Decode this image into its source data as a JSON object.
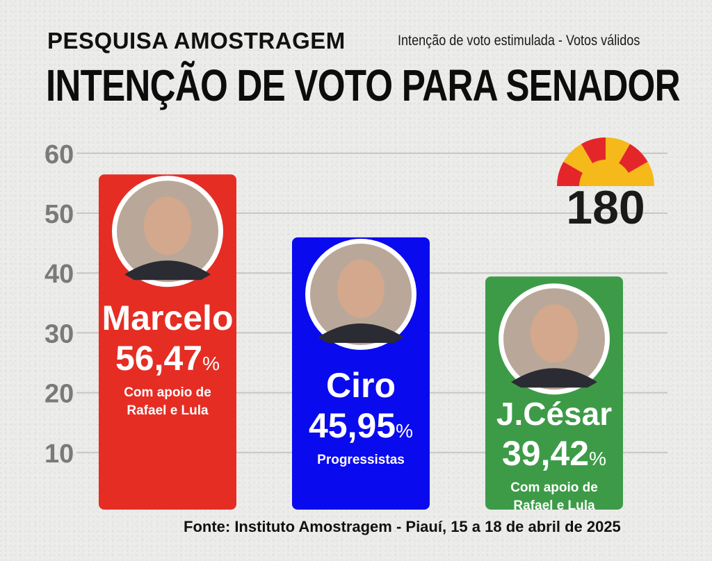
{
  "header": {
    "top": "PESQUISA AMOSTRAGEM",
    "subtitle": "Intenção de voto estimulada - Votos válidos",
    "title": "INTENÇÃO DE VOTO PARA SENADOR"
  },
  "logo": {
    "text": "180",
    "colors": [
      "#e4262a",
      "#f6b91a"
    ]
  },
  "source": "Fonte: Instituto Amostragem - Piauí, 15 a 18 de abril de 2025",
  "chart_data": {
    "type": "bar",
    "title": "INTENÇÃO DE VOTO PARA SENADOR",
    "subtitle": "Intenção de voto estimulada - Votos válidos",
    "ylim": [
      0,
      60
    ],
    "yticks": [
      10,
      20,
      30,
      40,
      50,
      60
    ],
    "grid": true,
    "categories": [
      "Marcelo",
      "Ciro",
      "J.César"
    ],
    "values": [
      56.47,
      45.95,
      39.42
    ],
    "value_labels": [
      "56,47",
      "45,95",
      "39,42"
    ],
    "unit": "%",
    "notes": [
      [
        "Com apoio de",
        "Rafael e  Lula"
      ],
      [
        "Progressistas"
      ],
      [
        "Com apoio de",
        "Rafael e  Lula"
      ]
    ],
    "colors": [
      "#e52d24",
      "#0a0aee",
      "#3d9b48"
    ]
  }
}
